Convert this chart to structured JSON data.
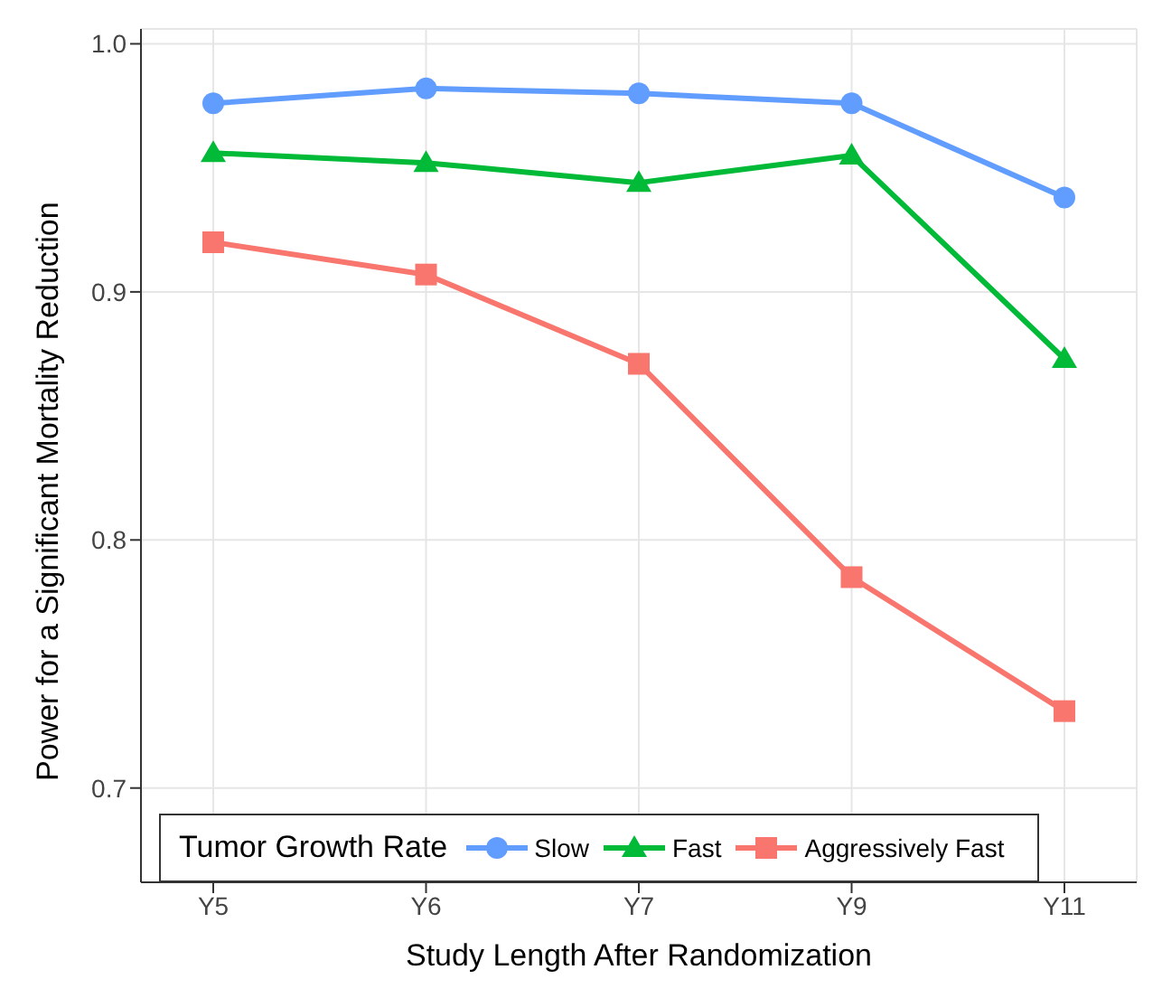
{
  "chart_data": {
    "type": "line",
    "xlabel": "Study Length After Randomization",
    "ylabel": "Power for a Significant Mortality Reduction",
    "legend_title": "Tumor Growth Rate",
    "categories": [
      "Y5",
      "Y6",
      "Y7",
      "Y9",
      "Y11"
    ],
    "series": [
      {
        "name": "Slow",
        "color": "#619cff",
        "marker": "circle",
        "values": [
          0.976,
          0.982,
          0.98,
          0.976,
          0.938
        ]
      },
      {
        "name": "Fast",
        "color": "#00ba38",
        "marker": "triangle",
        "values": [
          0.956,
          0.952,
          0.944,
          0.955,
          0.873
        ]
      },
      {
        "name": "Aggressively Fast",
        "color": "#f8766d",
        "marker": "square",
        "values": [
          0.92,
          0.907,
          0.871,
          0.785,
          0.731
        ]
      }
    ],
    "ylim": [
      0.662,
      1.006
    ],
    "yticks": [
      {
        "value": 0.7,
        "label": "0.7"
      },
      {
        "value": 0.8,
        "label": "0.8"
      },
      {
        "value": 0.9,
        "label": "0.9"
      },
      {
        "value": 1.0,
        "label": "1.0"
      }
    ],
    "grid": true,
    "legend": "bottom",
    "line_style": "solid"
  }
}
